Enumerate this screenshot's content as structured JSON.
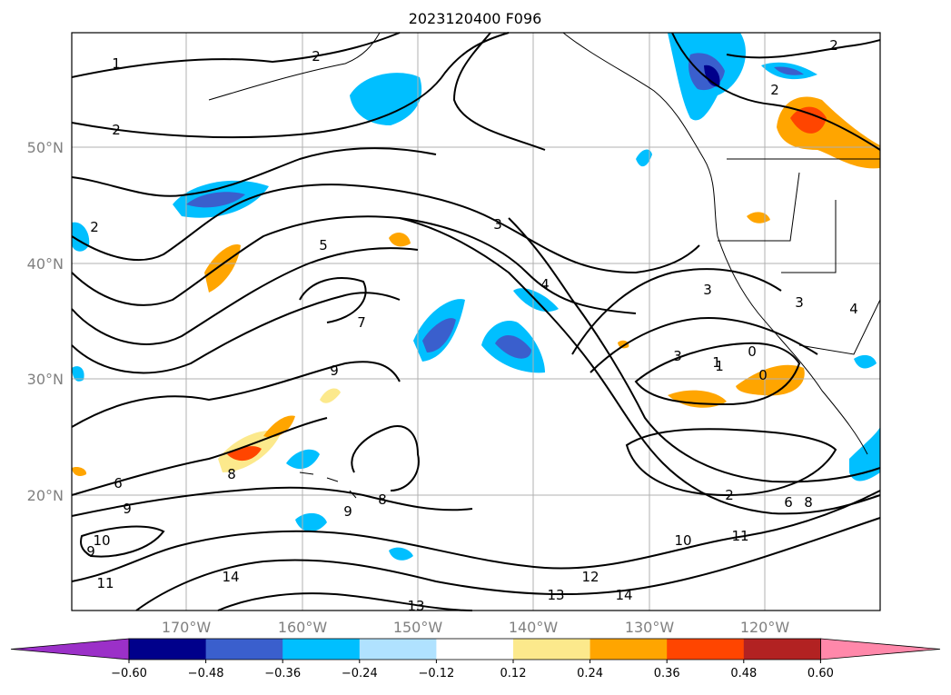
{
  "title": "2023120400 F096",
  "map": {
    "lat_labels": [
      "50°N",
      "40°N",
      "30°N",
      "20°N"
    ],
    "lon_labels": [
      "170°W",
      "160°W",
      "150°W",
      "140°W",
      "130°W",
      "120°W"
    ],
    "contour_labels": [
      "1",
      "2",
      "2",
      "2",
      "3",
      "4",
      "5",
      "7",
      "9",
      "6",
      "9",
      "10",
      "9",
      "11",
      "14",
      "13",
      "13",
      "12",
      "14",
      "10",
      "11",
      "2",
      "6",
      "8",
      "3",
      "1",
      "0",
      "0",
      "3",
      "3",
      "4",
      "8",
      "9",
      "8",
      "2",
      "2",
      "1"
    ]
  },
  "colorbar": {
    "ticks": [
      "−0.60",
      "−0.48",
      "−0.36",
      "−0.24",
      "−0.12",
      "0.12",
      "0.24",
      "0.36",
      "0.48",
      "0.60"
    ],
    "colors": [
      "#9b30c8",
      "#00008b",
      "#3a5fcd",
      "#00bfff",
      "#b0e2ff",
      "#ffffff",
      "#fce98c",
      "#ffa500",
      "#ff4500",
      "#b22222",
      "#ff88aa"
    ]
  }
}
